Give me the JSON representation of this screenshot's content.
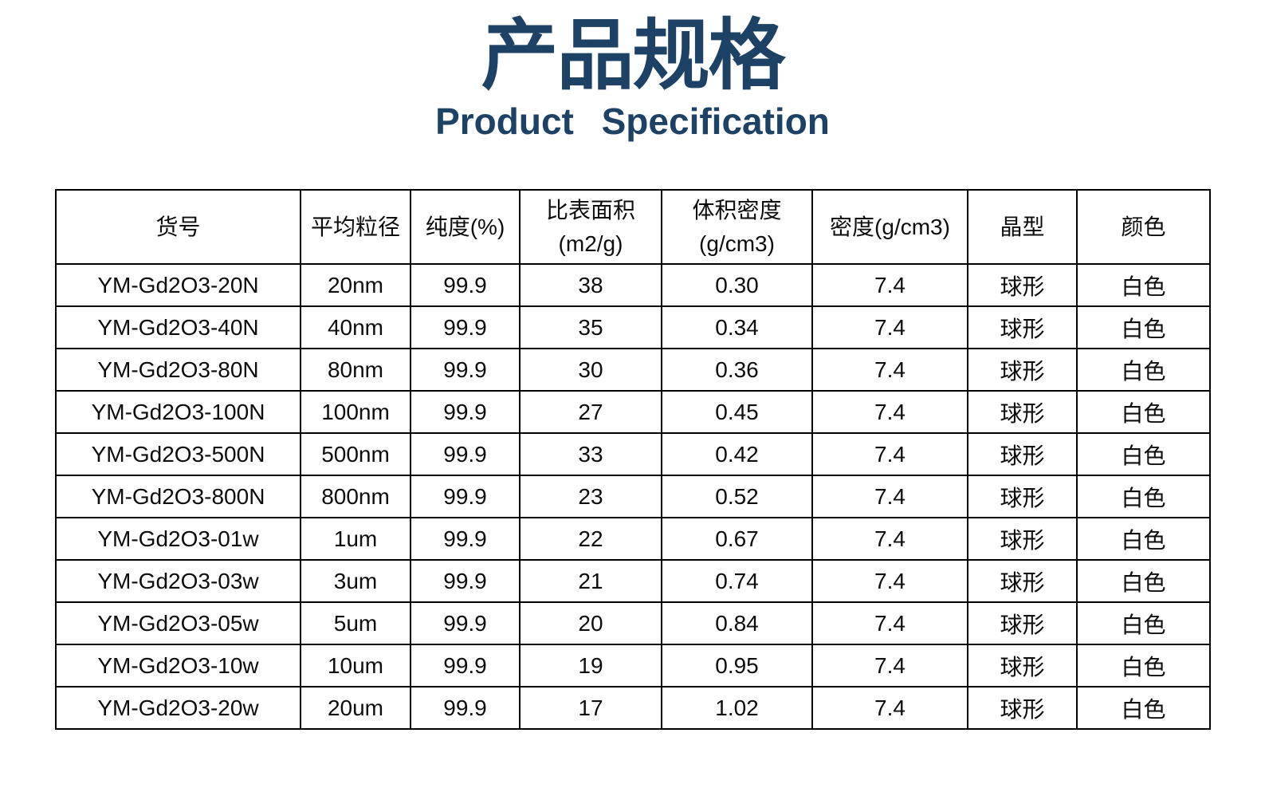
{
  "header": {
    "title_cn": "产品规格",
    "title_en": "Product Specification",
    "title_color": "#1e4265"
  },
  "table": {
    "border_color": "#000000",
    "columns": [
      {
        "key": "item-no",
        "label": "货号"
      },
      {
        "key": "avg-particle-size",
        "label": "平均粒径"
      },
      {
        "key": "purity",
        "label": "纯度(%)"
      },
      {
        "key": "specific-surface-area",
        "label": "比表面积\n(m2/g)"
      },
      {
        "key": "bulk-density",
        "label": "体积密度\n(g/cm3)"
      },
      {
        "key": "density",
        "label": "密度(g/cm3)"
      },
      {
        "key": "crystal-form",
        "label": "晶型"
      },
      {
        "key": "color",
        "label": "颜色"
      }
    ],
    "rows": [
      [
        "YM-Gd2O3-20N",
        "20nm",
        "99.9",
        "38",
        "0.30",
        "7.4",
        "球形",
        "白色"
      ],
      [
        "YM-Gd2O3-40N",
        "40nm",
        "99.9",
        "35",
        "0.34",
        "7.4",
        "球形",
        "白色"
      ],
      [
        "YM-Gd2O3-80N",
        "80nm",
        "99.9",
        "30",
        "0.36",
        "7.4",
        "球形",
        "白色"
      ],
      [
        "YM-Gd2O3-100N",
        "100nm",
        "99.9",
        "27",
        "0.45",
        "7.4",
        "球形",
        "白色"
      ],
      [
        "YM-Gd2O3-500N",
        "500nm",
        "99.9",
        "33",
        "0.42",
        "7.4",
        "球形",
        "白色"
      ],
      [
        "YM-Gd2O3-800N",
        "800nm",
        "99.9",
        "23",
        "0.52",
        "7.4",
        "球形",
        "白色"
      ],
      [
        "YM-Gd2O3-01w",
        "1um",
        "99.9",
        "22",
        "0.67",
        "7.4",
        "球形",
        "白色"
      ],
      [
        "YM-Gd2O3-03w",
        "3um",
        "99.9",
        "21",
        "0.74",
        "7.4",
        "球形",
        "白色"
      ],
      [
        "YM-Gd2O3-05w",
        "5um",
        "99.9",
        "20",
        "0.84",
        "7.4",
        "球形",
        "白色"
      ],
      [
        "YM-Gd2O3-10w",
        "10um",
        "99.9",
        "19",
        "0.95",
        "7.4",
        "球形",
        "白色"
      ],
      [
        "YM-Gd2O3-20w",
        "20um",
        "99.9",
        "17",
        "1.02",
        "7.4",
        "球形",
        "白色"
      ]
    ]
  }
}
